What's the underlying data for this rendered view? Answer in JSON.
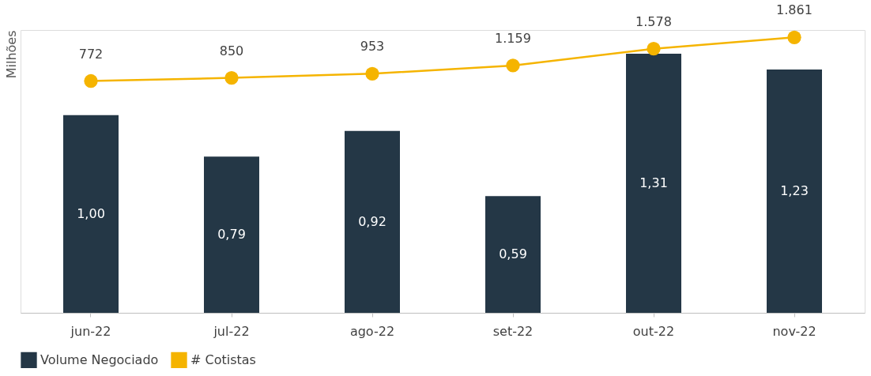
{
  "chart_data": {
    "type": "bar",
    "ylabel": "Milhões",
    "categories": [
      "jun-22",
      "jul-22",
      "ago-22",
      "set-22",
      "out-22",
      "nov-22"
    ],
    "series": [
      {
        "name": "Volume Negociado",
        "color": "#243746",
        "values": [
          1.0,
          0.79,
          0.92,
          0.59,
          1.31,
          1.23
        ],
        "value_labels": [
          "1,00",
          "0,79",
          "0,92",
          "0,59",
          "1,31",
          "1,23"
        ]
      },
      {
        "name": "# Cotistas",
        "type": "line",
        "axis": "y2",
        "color": "#f5b400",
        "values": [
          772,
          850,
          953,
          1159,
          1578,
          1861
        ],
        "value_labels": [
          "772",
          "850",
          "953",
          "1.159",
          "1.578",
          "1.861"
        ]
      }
    ],
    "ylim": [
      0,
      1.43
    ],
    "y2lim": [
      -5024,
      2046
    ],
    "tick_labels": "x",
    "grid": false,
    "legend": "bottom",
    "marker": "circle",
    "line_style": "solid"
  }
}
